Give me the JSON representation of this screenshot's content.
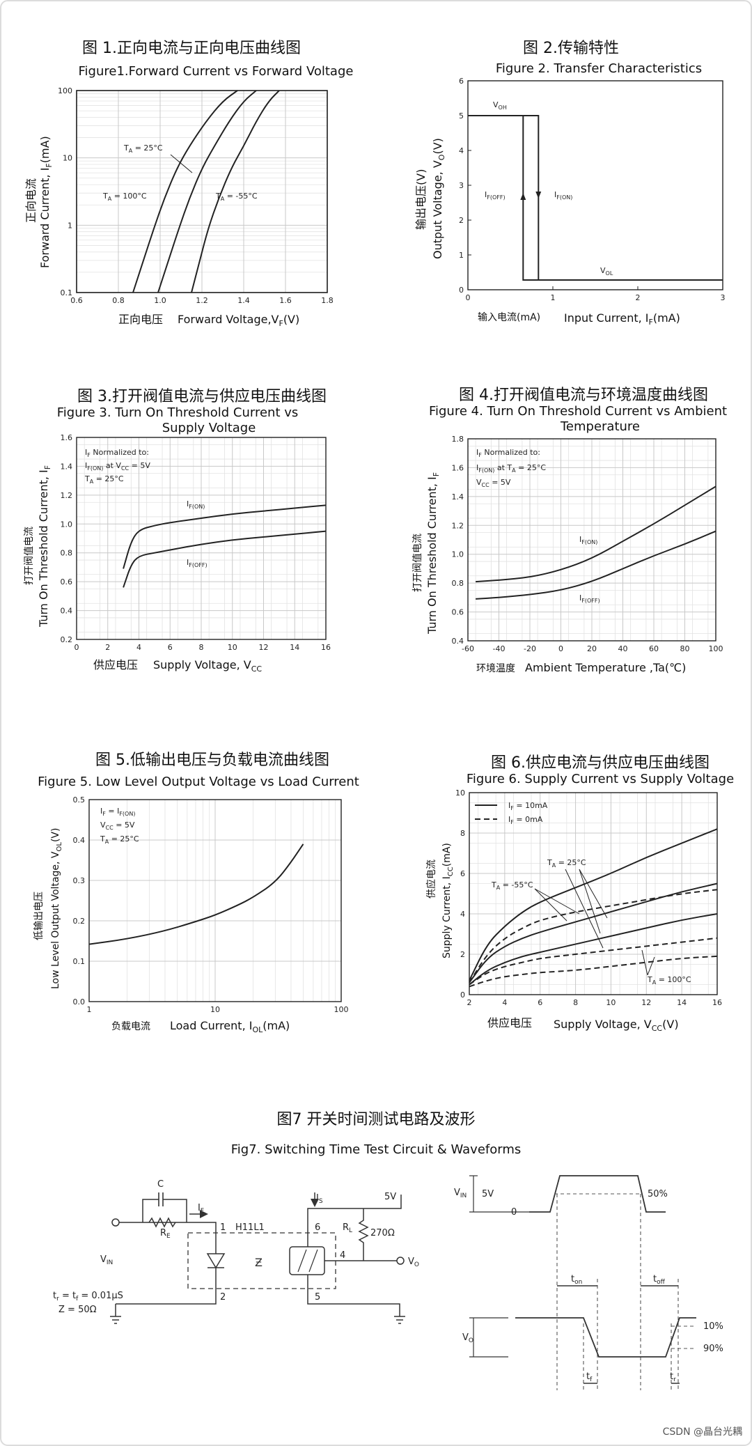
{
  "charts": {
    "fig1": {
      "title_cn": "图 1.正向电流与正向电压曲线图",
      "title_en": "Figure1.Forward Current vs Forward Voltage",
      "ylabel_cn": "正向电流",
      "ylabel_en": "Forward Current, I",
      "ylabel_sub": "F",
      "ylabel_unit": "(mA)",
      "xlabel_cn": "正向电压",
      "xlabel_en": "Forward Voltage,V",
      "xlabel_sub": "F",
      "xlabel_unit": "(V)",
      "curve_labels": [
        "T",
        "A",
        " = 100°C",
        " = 25°C",
        " = -55°C"
      ]
    },
    "fig2": {
      "title_cn": "图 2.传输特性",
      "title_en": "Figure 2. Transfer Characteristics",
      "ylabel_cn": "输出电压(V)",
      "ylabel_en": "Output Voltage, V",
      "ylabel_sub": "O",
      "ylabel_unit": "(V)",
      "xlabel_cn": "输入电流(mA)",
      "xlabel_en": "Input Current, I",
      "xlabel_sub": "F",
      "xlabel_unit": "(mA)",
      "voh": "V",
      "voh_sub": "OH",
      "vol": "V",
      "vol_sub": "OL",
      "ifoff": "I",
      "ifoff_sub": "F(OFF)",
      "ifon": "I",
      "ifon_sub": "F(ON)"
    },
    "fig3": {
      "title_cn": "图 3.打开阀值电流与供应电压曲线图",
      "title_en_1": "Figure 3. Turn On Threshold Current vs",
      "title_en_2": "Supply Voltage",
      "ylabel_cn": "打开阀值电流",
      "ylabel_en": "Turn On Threshold Current, I",
      "ylabel_sub": "F",
      "xlabel_cn": "供应电压",
      "xlabel_en": "Supply Voltage, V",
      "xlabel_sub": "CC",
      "note_1": "I",
      "note_1_sub": "F",
      "note_1_rest": " Normalized to:",
      "note_2": "I",
      "note_2_sub": "F(ON)",
      "note_2_rest": " at V",
      "note_2_sub2": "CC",
      "note_2_rest2": " = 5V",
      "note_3": "T",
      "note_3_sub": "A",
      "note_3_rest": " = 25°C",
      "on": "I",
      "on_sub": "F(ON)",
      "off": "I",
      "off_sub": "F(OFF)"
    },
    "fig4": {
      "title_cn": "图 4.打开阀值电流与环境温度曲线图",
      "title_en_1": "Figure 4. Turn On Threshold Current vs Ambient",
      "title_en_2": "Temperature",
      "ylabel_cn": "打开阀值电流",
      "ylabel_en": "Turn On Threshold Current, I",
      "ylabel_sub": "F",
      "xlabel_cn": "环境温度",
      "xlabel_en": "Ambient Temperature ,Ta(℃)",
      "note_1": "I",
      "note_1_sub": "F",
      "note_1_rest": " Normalized to:",
      "note_2": "I",
      "note_2_sub": "F(ON)",
      "note_2_rest": " at T",
      "note_2_sub2": "A",
      "note_2_rest2": " = 25°C",
      "note_3": "V",
      "note_3_sub": "CC",
      "note_3_rest": " = 5V",
      "on": "I",
      "on_sub": "F(ON)",
      "off": "I",
      "off_sub": "F(OFF)"
    },
    "fig5": {
      "title_cn": "图 5.低输出电压与负载电流曲线图",
      "title_en": "Figure 5. Low Level Output Voltage vs Load Current",
      "ylabel_cn": "低输出电压",
      "ylabel_en": "Low Level Output Voltage, V",
      "ylabel_sub": "OL",
      "ylabel_unit": "(V)",
      "xlabel_cn": "负载电流",
      "xlabel_en": "Load Current, I",
      "xlabel_sub": "OL",
      "xlabel_unit": "(mA)",
      "note_1": "I",
      "note_1_sub": "F",
      "note_1_rest": " = I",
      "note_1_sub2": "F(ON)",
      "note_2": "V",
      "note_2_sub": "CC",
      "note_2_rest": " = 5V",
      "note_3": "T",
      "note_3_sub": "A",
      "note_3_rest": " = 25°C"
    },
    "fig6": {
      "title_cn": "图 6.供应电流与供应电压曲线图",
      "title_en": "Figure 6. Supply Current vs Supply Voltage",
      "ylabel_cn": "供应电流",
      "ylabel_en": "Supply Current, I",
      "ylabel_sub": "CC",
      "ylabel_unit": "(mA)",
      "xlabel_cn": "供应电压",
      "xlabel_en": "Supply Voltage, V",
      "xlabel_sub": "CC",
      "xlabel_unit": "(V)",
      "legend_1": "I",
      "legend_1_sub": "F",
      "legend_1_rest": " = 10mA",
      "legend_2": "I",
      "legend_2_sub": "F",
      "legend_2_rest": " = 0mA",
      "t25": "T",
      "t25_sub": "A",
      "t25_rest": " = 25°C",
      "t55": "T",
      "t55_sub": "A",
      "t55_rest": " = -55°C",
      "t100": "T",
      "t100_sub": "A",
      "t100_rest": " = 100°C"
    },
    "fig7": {
      "title_cn": "图7 开关时间测试电路及波形",
      "title_en": "Fig7. Switching Time Test Circuit & Waveforms",
      "c": "C",
      "re": "R",
      "re_sub": "E",
      "if": "I",
      "if_sub": "F",
      "is": "I",
      "is_sub": "S",
      "vcc": "5V",
      "rl": "R",
      "rl_sub": "L",
      "rl_val": "270Ω",
      "part": "H11L1",
      "vin": "V",
      "vin_sub": "IN",
      "vo": "V",
      "vo_sub": "O",
      "pin1": "1",
      "pin2": "2",
      "pin4": "4",
      "pin5": "5",
      "pin6": "6",
      "tr_tf": "t",
      "tr_sub": "r",
      "tr_rest": " = t",
      "tf_sub": "f",
      "tr_val": " = 0.01μS",
      "z": "Z = 50Ω",
      "w_vin": "V",
      "w_vin_sub": "IN",
      "w_5v": "5V",
      "w_0": "0",
      "w_50": "50%",
      "w_ton": "t",
      "w_ton_sub": "on",
      "w_toff": "t",
      "w_toff_sub": "off",
      "w_vo": "V",
      "w_vo_sub": "O",
      "w_10": "10%",
      "w_90": "90%",
      "w_tf": "t",
      "w_tf_sub": "f",
      "w_tr": "t",
      "w_tr_sub": "r"
    },
    "watermark": "CSDN @晶台光耦"
  },
  "chart_data": [
    {
      "type": "line",
      "title": "Figure1.Forward Current vs Forward Voltage",
      "xlabel": "正向电压 Forward Voltage,VF(V)",
      "ylabel": "正向电流 Forward Current, IF(mA)",
      "xlim": [
        0.6,
        1.8
      ],
      "ylim": [
        0.1,
        100
      ],
      "yscale": "log",
      "xticks": [
        "0.6",
        "0.8",
        "1.0",
        "1.2",
        "1.4",
        "1.6",
        "1.8"
      ],
      "yticks": [
        "0.1",
        "1",
        "10",
        "100"
      ],
      "grid": true,
      "series": [
        {
          "name": "TA = 100°C",
          "x": [
            0.87,
            0.92,
            0.97,
            1.02,
            1.08,
            1.14,
            1.22,
            1.3,
            1.37
          ],
          "y": [
            0.1,
            0.3,
            0.9,
            2.5,
            7,
            15,
            35,
            70,
            100
          ]
        },
        {
          "name": "TA = 25°C",
          "x": [
            0.99,
            1.04,
            1.09,
            1.14,
            1.2,
            1.26,
            1.33,
            1.4,
            1.46
          ],
          "y": [
            0.1,
            0.3,
            0.9,
            2.5,
            7,
            15,
            35,
            70,
            100
          ]
        },
        {
          "name": "TA = -55°C",
          "x": [
            1.15,
            1.19,
            1.23,
            1.28,
            1.34,
            1.4,
            1.46,
            1.52,
            1.57
          ],
          "y": [
            0.1,
            0.3,
            0.9,
            2.5,
            7,
            15,
            35,
            70,
            100
          ]
        }
      ]
    },
    {
      "type": "line",
      "title": "Figure 2. Transfer Characteristics",
      "xlabel": "输入电流(mA) Input Current, IF(mA)",
      "ylabel": "输出电压(V) Output Voltage, VO(V)",
      "xlim": [
        0,
        3
      ],
      "ylim": [
        0,
        6
      ],
      "xticks": [
        "0",
        "1",
        "2",
        "3"
      ],
      "yticks": [
        "0",
        "1",
        "2",
        "3",
        "4",
        "5",
        "6"
      ],
      "grid": false,
      "series": [
        {
          "name": "VOH",
          "x": [
            0,
            0.83,
            0.83
          ],
          "y": [
            5,
            5,
            0.28
          ]
        },
        {
          "name": "VOL",
          "x": [
            0.65,
            0.65,
            3
          ],
          "y": [
            5,
            0.28,
            0.28
          ]
        }
      ]
    },
    {
      "type": "line",
      "title": "Figure 3. Turn On Threshold Current vs Supply Voltage",
      "xlabel": "供应电压 Supply Voltage, VCC",
      "ylabel": "打开阀值电流 Turn On Threshold Current, IF",
      "xlim": [
        0,
        16
      ],
      "ylim": [
        0.2,
        1.6
      ],
      "xticks": [
        "0",
        "2",
        "4",
        "6",
        "8",
        "10",
        "12",
        "14",
        "16"
      ],
      "yticks": [
        "0.2",
        "0.4",
        "0.6",
        "0.8",
        "1.0",
        "1.2",
        "1.4",
        "1.6"
      ],
      "grid": true,
      "series": [
        {
          "name": "IF(ON)",
          "x": [
            3,
            3.5,
            4,
            5,
            6,
            8,
            10,
            12,
            14,
            16
          ],
          "y": [
            0.69,
            0.88,
            0.96,
            0.99,
            1.01,
            1.04,
            1.07,
            1.09,
            1.11,
            1.13
          ]
        },
        {
          "name": "IF(OFF)",
          "x": [
            3,
            3.5,
            4,
            5,
            6,
            8,
            10,
            12,
            14,
            16
          ],
          "y": [
            0.56,
            0.72,
            0.78,
            0.8,
            0.82,
            0.86,
            0.89,
            0.91,
            0.93,
            0.95
          ]
        }
      ]
    },
    {
      "type": "line",
      "title": "Figure 4. Turn On Threshold Current vs Ambient Temperature",
      "xlabel": "环境温度 Ambient Temperature ,Ta(℃)",
      "ylabel": "打开阀值电流 Turn On Threshold Current, IF",
      "xlim": [
        -60,
        100
      ],
      "ylim": [
        0.4,
        1.8
      ],
      "xticks": [
        "-60",
        "-40",
        "-20",
        "0",
        "20",
        "40",
        "60",
        "80",
        "100"
      ],
      "yticks": [
        "0.4",
        "0.6",
        "0.8",
        "1.0",
        "1.2",
        "1.4",
        "1.6",
        "1.8"
      ],
      "grid": true,
      "series": [
        {
          "name": "IF(ON)",
          "x": [
            -55,
            -40,
            -20,
            0,
            20,
            40,
            60,
            80,
            100
          ],
          "y": [
            0.81,
            0.82,
            0.84,
            0.89,
            0.97,
            1.09,
            1.21,
            1.34,
            1.47
          ]
        },
        {
          "name": "IF(OFF)",
          "x": [
            -55,
            -40,
            -20,
            0,
            20,
            40,
            60,
            80,
            100
          ],
          "y": [
            0.69,
            0.7,
            0.72,
            0.75,
            0.81,
            0.9,
            0.99,
            1.07,
            1.16
          ]
        }
      ]
    },
    {
      "type": "line",
      "title": "Figure 5. Low Level Output Voltage vs Load Current",
      "xlabel": "负载电流 Load Current, IOL(mA)",
      "ylabel": "低输出电压 Low Level Output Voltage, VOL(V)",
      "xlim": [
        1,
        100
      ],
      "ylim": [
        0,
        0.5
      ],
      "xscale": "log",
      "xticks": [
        "1",
        "10",
        "100"
      ],
      "yticks": [
        "0.0",
        "0.1",
        "0.2",
        "0.3",
        "0.4",
        "0.5"
      ],
      "grid": true,
      "series": [
        {
          "name": "VOL",
          "x": [
            1,
            2,
            4,
            7,
            10,
            15,
            20,
            30,
            40,
            50
          ],
          "y": [
            0.142,
            0.155,
            0.175,
            0.198,
            0.214,
            0.238,
            0.258,
            0.295,
            0.345,
            0.39
          ]
        }
      ]
    },
    {
      "type": "line",
      "title": "Figure 6. Supply Current vs Supply Voltage",
      "xlabel": "供应电压 Supply Voltage, VCC(V)",
      "ylabel": "供应电流 Supply Current, ICC(mA)",
      "xlim": [
        2,
        16
      ],
      "ylim": [
        0,
        10
      ],
      "xticks": [
        "2",
        "4",
        "6",
        "8",
        "10",
        "12",
        "14",
        "16"
      ],
      "yticks": [
        "0",
        "2",
        "4",
        "6",
        "8",
        "10"
      ],
      "grid": true,
      "series": [
        {
          "name": "IF = 10mA, TA = -55°C",
          "x": [
            2,
            3,
            4,
            5,
            6,
            8,
            10,
            12,
            14,
            16
          ],
          "y": [
            0.7,
            2.5,
            3.4,
            4.1,
            4.6,
            5.3,
            6.0,
            6.8,
            7.5,
            8.2
          ]
        },
        {
          "name": "IF = 10mA, TA = 25°C",
          "x": [
            2,
            3,
            4,
            5,
            6,
            8,
            10,
            12,
            14,
            16
          ],
          "y": [
            0.6,
            1.8,
            2.4,
            2.8,
            3.1,
            3.6,
            4.1,
            4.6,
            5.1,
            5.5
          ]
        },
        {
          "name": "IF = 10mA, TA = 100°C",
          "x": [
            2,
            3,
            4,
            5,
            6,
            8,
            10,
            12,
            14,
            16
          ],
          "y": [
            0.5,
            1.2,
            1.6,
            1.9,
            2.1,
            2.5,
            2.9,
            3.3,
            3.7,
            4.0
          ]
        },
        {
          "name": "IF = 0mA, TA = -55°C",
          "x": [
            2,
            3,
            4,
            5,
            6,
            8,
            10,
            12,
            14,
            16
          ],
          "y": [
            0.6,
            2.0,
            2.8,
            3.3,
            3.7,
            4.1,
            4.4,
            4.7,
            5.0,
            5.2
          ]
        },
        {
          "name": "IF = 0mA, TA = 25°C",
          "x": [
            2,
            3,
            4,
            5,
            6,
            8,
            10,
            12,
            14,
            16
          ],
          "y": [
            0.5,
            1.1,
            1.4,
            1.6,
            1.8,
            2.0,
            2.2,
            2.4,
            2.6,
            2.8
          ]
        },
        {
          "name": "IF = 0mA, TA = 100°C",
          "x": [
            2,
            3,
            4,
            5,
            6,
            8,
            10,
            12,
            14,
            16
          ],
          "y": [
            0.4,
            0.7,
            0.9,
            1.0,
            1.1,
            1.2,
            1.4,
            1.6,
            1.8,
            1.9
          ]
        }
      ]
    }
  ]
}
